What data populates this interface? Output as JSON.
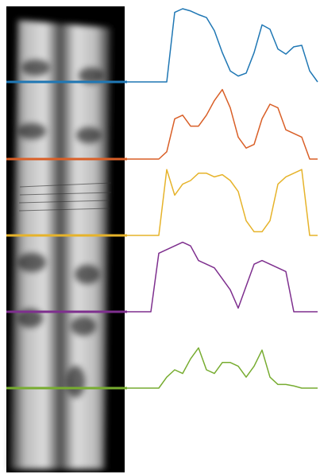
{
  "chart_data": {
    "type": "line",
    "ylim": [
      0,
      100
    ],
    "series": [
      {
        "color": "#1f77b4",
        "values": [
          0,
          0,
          0,
          0,
          0,
          0,
          95,
          100,
          97,
          92,
          88,
          70,
          40,
          15,
          8,
          12,
          40,
          78,
          72,
          45,
          38,
          48,
          50,
          15,
          0
        ]
      },
      {
        "color": "#d95f27",
        "values": [
          0,
          0,
          0,
          0,
          0,
          10,
          55,
          60,
          45,
          45,
          60,
          80,
          95,
          70,
          30,
          15,
          20,
          55,
          75,
          70,
          40,
          35,
          30,
          0,
          0
        ]
      },
      {
        "color": "#e6b32a",
        "values": [
          0,
          0,
          0,
          0,
          0,
          90,
          55,
          70,
          75,
          85,
          85,
          80,
          83,
          75,
          60,
          20,
          5,
          5,
          20,
          70,
          80,
          85,
          90,
          0,
          0
        ]
      },
      {
        "color": "#7e2f8e",
        "values": [
          0,
          0,
          0,
          0,
          80,
          85,
          90,
          95,
          90,
          70,
          65,
          60,
          45,
          30,
          5,
          35,
          65,
          70,
          65,
          60,
          55,
          0,
          0,
          0,
          0
        ]
      },
      {
        "color": "#77ac30",
        "values": [
          0,
          0,
          0,
          0,
          0,
          15,
          25,
          20,
          40,
          55,
          25,
          20,
          35,
          35,
          30,
          15,
          30,
          52,
          15,
          5,
          5,
          3,
          0,
          0,
          0
        ]
      }
    ]
  }
}
